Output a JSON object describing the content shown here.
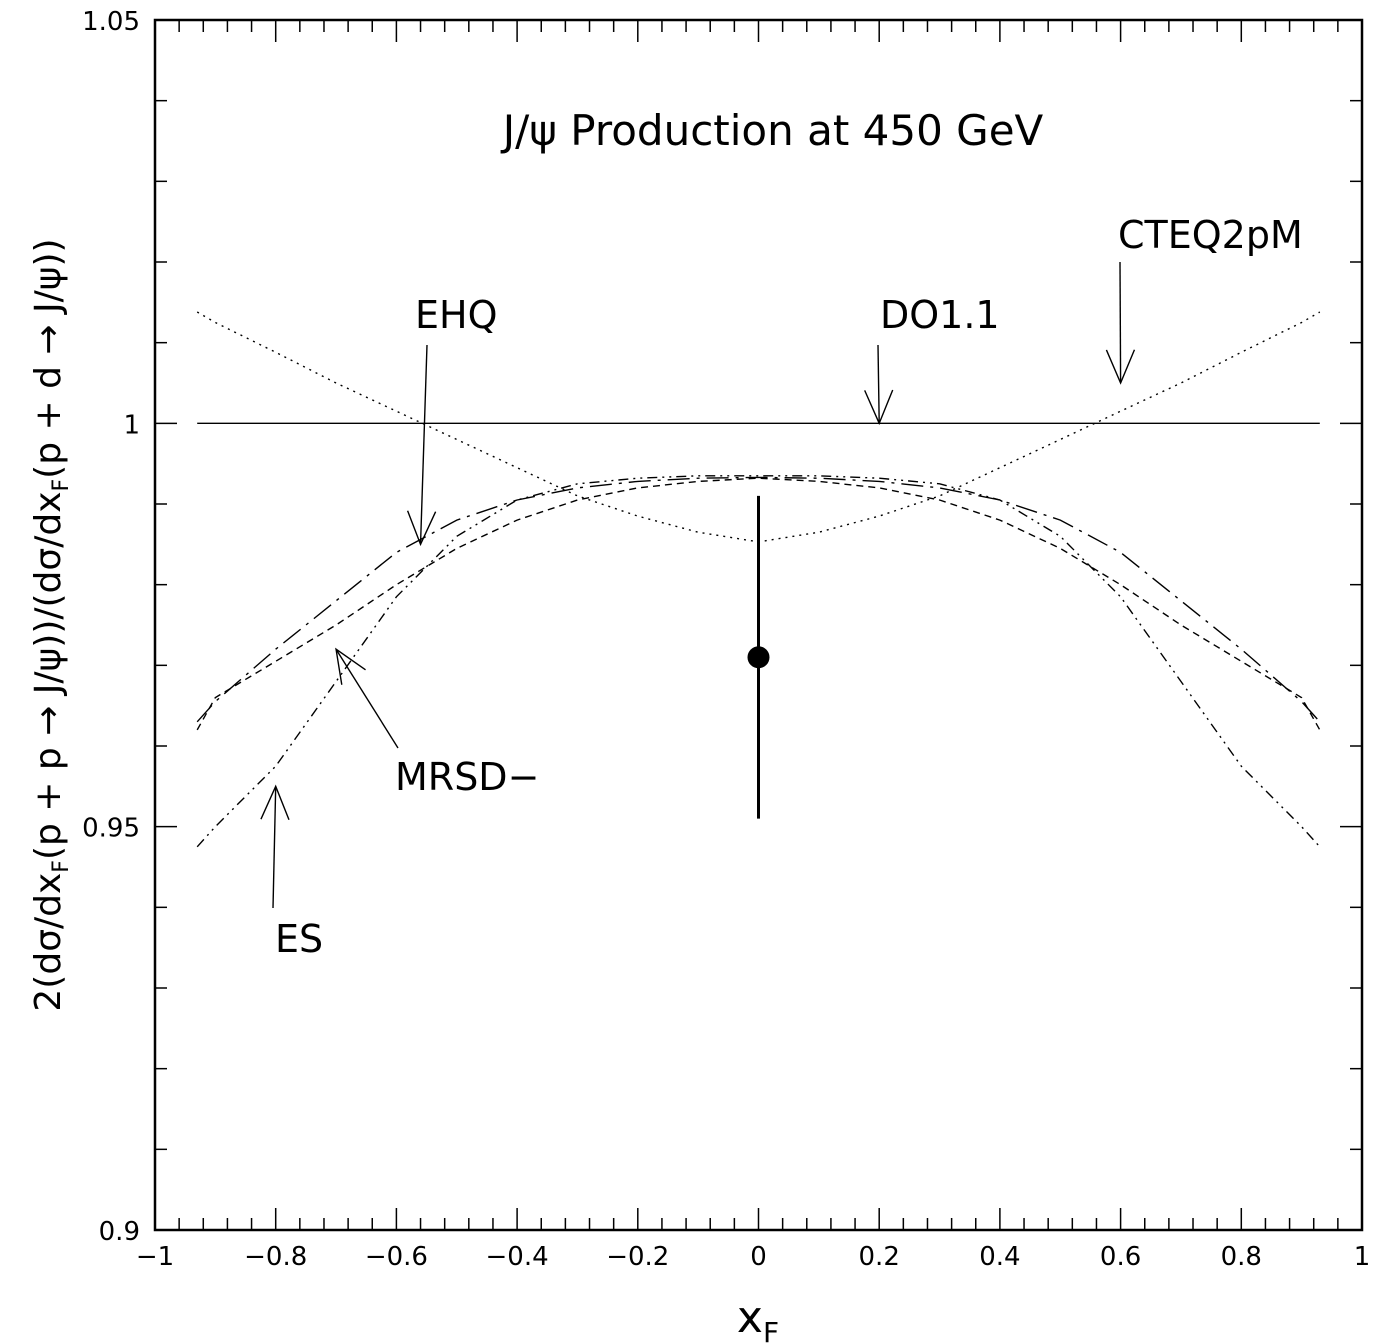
{
  "chart_data": {
    "type": "line",
    "title": "J/ψ Production at 450 GeV",
    "xlabel": "x_F",
    "ylabel": "2(dσ/dx_F(p + p → J/ψ))/(dσ/dx_F(p + d → J/ψ))",
    "xlabel_parts": {
      "main": "x",
      "sub": "F"
    },
    "ylabel_parts": {
      "pre": "2(dσ/dx",
      "sub1": "F",
      "mid": "(p + p → J/ψ))/(dσ/dx",
      "sub2": "F",
      "post": "(p + d → J/ψ))"
    },
    "xlim": [
      -1,
      1
    ],
    "ylim": [
      0.9,
      1.05
    ],
    "xticks": [
      -1,
      -0.8,
      -0.6,
      -0.4,
      -0.2,
      0,
      0.2,
      0.4,
      0.6,
      0.8,
      1
    ],
    "xtick_labels": [
      "−1",
      "−0.8",
      "−0.6",
      "−0.4",
      "−0.2",
      "0",
      "0.2",
      "0.4",
      "0.6",
      "0.8",
      "1"
    ],
    "yticks": [
      0.9,
      0.95,
      1,
      1.05
    ],
    "ytick_labels": [
      "0.9",
      "0.95",
      "1",
      "1.05"
    ],
    "grid": false,
    "x": [
      -0.93,
      -0.9,
      -0.8,
      -0.7,
      -0.6,
      -0.5,
      -0.4,
      -0.3,
      -0.2,
      -0.1,
      0,
      0.1,
      0.2,
      0.3,
      0.4,
      0.5,
      0.6,
      0.7,
      0.8,
      0.9,
      0.93
    ],
    "series": [
      {
        "name": "DO1.1",
        "style": "solid",
        "values": [
          1.0,
          1.0,
          1.0,
          1.0,
          1.0,
          1.0,
          1.0,
          1.0,
          1.0,
          1.0,
          1.0,
          1.0,
          1.0,
          1.0,
          1.0,
          1.0,
          1.0,
          1.0,
          1.0,
          1.0,
          1.0
        ]
      },
      {
        "name": "CTEQ2pM",
        "style": "dotted",
        "values": [
          1.0138,
          1.0125,
          1.0088,
          1.005,
          1.0015,
          0.998,
          0.9945,
          0.991,
          0.9885,
          0.9865,
          0.9853,
          0.9865,
          0.9885,
          0.991,
          0.9945,
          0.998,
          1.0015,
          1.005,
          1.0088,
          1.0125,
          1.0138
        ]
      },
      {
        "name": "EHQ",
        "style": "dash-dot",
        "values": [
          0.963,
          0.9655,
          0.972,
          0.978,
          0.984,
          0.988,
          0.9905,
          0.992,
          0.9928,
          0.9932,
          0.9933,
          0.9932,
          0.9928,
          0.992,
          0.9905,
          0.988,
          0.984,
          0.978,
          0.972,
          0.9655,
          0.963
        ]
      },
      {
        "name": "MRSD−",
        "style": "dashed",
        "values": [
          0.962,
          0.966,
          0.9705,
          0.975,
          0.98,
          0.9845,
          0.988,
          0.9905,
          0.992,
          0.9928,
          0.9932,
          0.9928,
          0.992,
          0.9905,
          0.988,
          0.9845,
          0.98,
          0.975,
          0.9705,
          0.966,
          0.962
        ]
      },
      {
        "name": "ES",
        "style": "dash-dot-dot",
        "values": [
          0.9475,
          0.95,
          0.9575,
          0.968,
          0.9785,
          0.986,
          0.9905,
          0.9925,
          0.9932,
          0.9935,
          0.9935,
          0.9935,
          0.9932,
          0.9925,
          0.9905,
          0.986,
          0.9785,
          0.968,
          0.9575,
          0.95,
          0.9475
        ]
      }
    ],
    "points": [
      {
        "x": 0,
        "y": 0.971,
        "yerr_low": 0.951,
        "yerr_high": 0.991
      }
    ],
    "annotations": [
      {
        "text": "EHQ",
        "arrow_to": [
          -0.56,
          0.985
        ]
      },
      {
        "text": "DO1.1",
        "arrow_to": [
          0.2,
          1.0
        ]
      },
      {
        "text": "CTEQ2pM",
        "arrow_to": [
          0.6,
          1.005
        ]
      },
      {
        "text": "MRSD−",
        "arrow_to": [
          -0.7,
          0.972
        ]
      },
      {
        "text": "ES",
        "arrow_to": [
          -0.8,
          0.955
        ]
      }
    ]
  }
}
